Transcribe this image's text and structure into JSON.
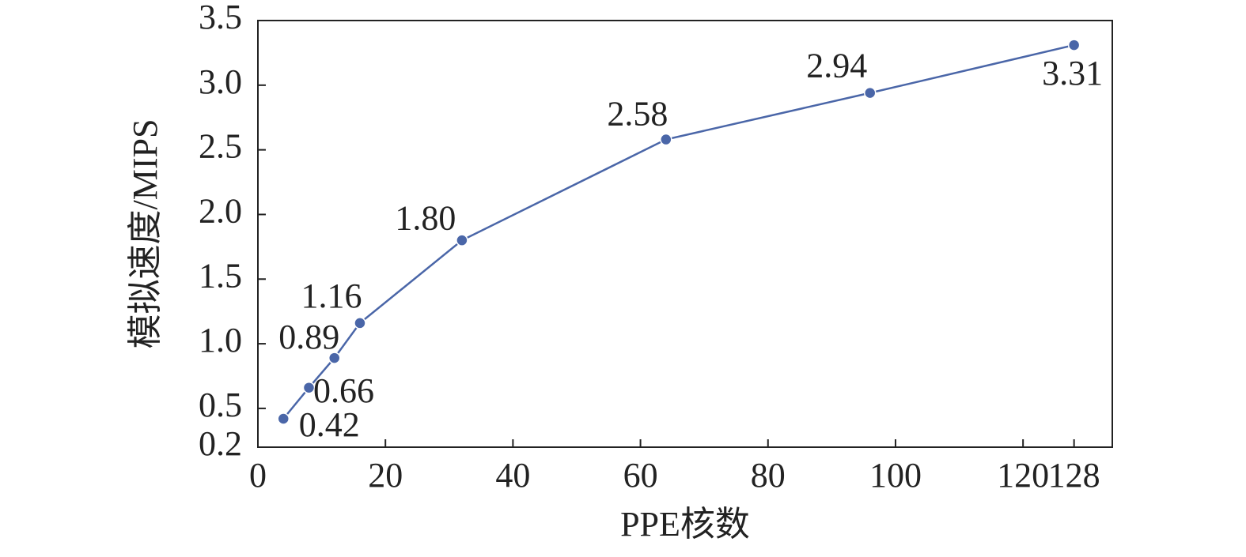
{
  "chart_data": {
    "type": "line",
    "x_label": "PPE核数",
    "y_label": "模拟速度/MIPS",
    "x": [
      4,
      8,
      12,
      16,
      32,
      64,
      96,
      128
    ],
    "series": [
      {
        "color": "#4a66a8",
        "values": [
          0.42,
          0.66,
          0.89,
          1.16,
          1.8,
          2.58,
          2.94,
          3.31
        ],
        "value_labels": [
          "0.42",
          "0.66",
          "0.89",
          "1.16",
          "1.80",
          "2.58",
          "2.94",
          "3.31"
        ]
      }
    ],
    "xlim": [
      0,
      134
    ],
    "xticks": [
      0,
      20,
      40,
      60,
      80,
      100,
      120,
      128
    ],
    "ylim": [
      0.2,
      3.5
    ],
    "yticks": [
      0.2,
      0.5,
      {
        "value": 1,
        "label": "1.0"
      },
      1.5,
      {
        "value": 2,
        "label": "2.0"
      },
      2.5,
      {
        "value": 3,
        "label": "3.0"
      },
      3.5
    ]
  }
}
